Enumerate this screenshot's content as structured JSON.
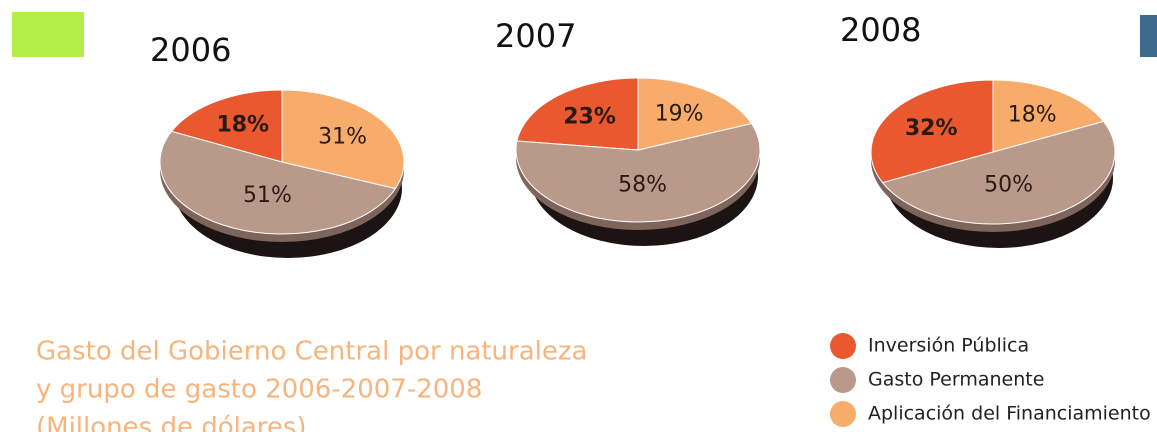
{
  "chart_data": [
    {
      "type": "pie",
      "title": "2006",
      "values": [
        18,
        51,
        31
      ],
      "value_labels": [
        "18%",
        "51%",
        "31%"
      ],
      "colors": [
        "#e9582e",
        "#b99a8a",
        "#f7ac6b"
      ]
    },
    {
      "type": "pie",
      "title": "2007",
      "values": [
        23,
        58,
        19
      ],
      "value_labels": [
        "23%",
        "58%",
        "19%"
      ],
      "colors": [
        "#e9582e",
        "#b99a8a",
        "#f7ac6b"
      ]
    },
    {
      "type": "pie",
      "title": "2008",
      "values": [
        32,
        50,
        18
      ],
      "value_labels": [
        "32%",
        "50%",
        "18%"
      ],
      "colors": [
        "#e9582e",
        "#b99a8a",
        "#f7ac6b"
      ]
    }
  ],
  "legend": {
    "items": [
      "Inversión Pública",
      "Gasto Permanente",
      "Aplicación del Financiamiento"
    ],
    "colors": [
      "#e9582e",
      "#b99a8a",
      "#f7ac6b"
    ]
  },
  "caption": {
    "lines": [
      "Gasto del Gobierno Central por naturaleza",
      "y grupo de gasto 2006-2007-2008",
      "(Millones de dólares)"
    ]
  }
}
